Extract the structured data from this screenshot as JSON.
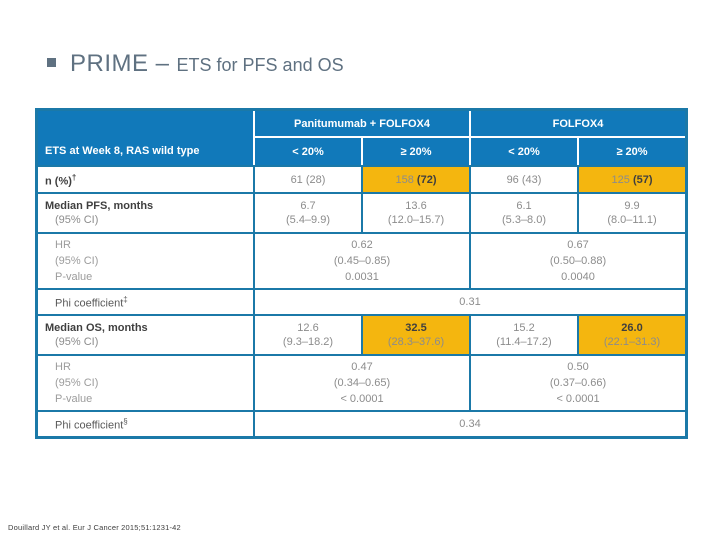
{
  "title": {
    "bullet_icon": "square-bullet",
    "primary": "PRIME –",
    "secondary": "ETS for PFS and OS"
  },
  "colors": {
    "table_blue": "#1179ba",
    "border_blue": "#1b79a8",
    "highlight_yellow": "#f4b60f",
    "title_gray": "#5f7181"
  },
  "table": {
    "corner_label": "ETS at Week 8, RAS wild type",
    "groups": [
      "Panitumumab + FOLFOX4",
      "FOLFOX4"
    ],
    "subheaders": [
      "< 20%",
      "≥ 20%",
      "< 20%",
      "≥ 20%"
    ],
    "n_row": {
      "label": "n (%)",
      "label_sup": "†",
      "cells": [
        {
          "value": "61",
          "pct": "(28)",
          "highlighted": false
        },
        {
          "value": "158",
          "pct": "(72)",
          "highlighted": true
        },
        {
          "value": "96",
          "pct": "(43)",
          "highlighted": false
        },
        {
          "value": "125",
          "pct": "(57)",
          "highlighted": true
        }
      ]
    },
    "pfs_row": {
      "label": "Median PFS, months",
      "sublabel": "(95% CI)",
      "cells": [
        {
          "value": "6.7",
          "ci": "(5.4–9.9)",
          "highlighted": false
        },
        {
          "value": "13.6",
          "ci": "(12.0–15.7)",
          "highlighted": false
        },
        {
          "value": "6.1",
          "ci": "(5.3–8.0)",
          "highlighted": false
        },
        {
          "value": "9.9",
          "ci": "(8.0–11.1)",
          "highlighted": false
        }
      ]
    },
    "pfs_hr_row": {
      "label_lines": [
        "HR",
        "(95% CI)",
        "P-value"
      ],
      "cells": [
        {
          "hr": "0.62",
          "ci": "(0.45–0.85)",
          "p": "0.0031"
        },
        {
          "hr": "0.67",
          "ci": "(0.50–0.88)",
          "p": "0.0040"
        }
      ]
    },
    "phi_pfs_row": {
      "label": "Phi coefficient",
      "label_sup": "‡",
      "value": "0.31"
    },
    "os_row": {
      "label": "Median OS, months",
      "sublabel": "(95% CI)",
      "cells": [
        {
          "value": "12.6",
          "ci": "(9.3–18.2)",
          "highlighted": false
        },
        {
          "value": "32.5",
          "ci": "(28.3–37.6)",
          "highlighted": true
        },
        {
          "value": "15.2",
          "ci": "(11.4–17.2)",
          "highlighted": false
        },
        {
          "value": "26.0",
          "ci": "(22.1–31.3)",
          "highlighted": true
        }
      ]
    },
    "os_hr_row": {
      "label_lines": [
        "HR",
        "(95% CI)",
        "P-value"
      ],
      "cells": [
        {
          "hr": "0.47",
          "ci": "(0.34–0.65)",
          "p": "< 0.0001"
        },
        {
          "hr": "0.50",
          "ci": "(0.37–0.66)",
          "p": "< 0.0001"
        }
      ]
    },
    "phi_os_row": {
      "label": "Phi coefficient",
      "label_sup": "§",
      "value": "0.34"
    }
  },
  "footer": {
    "citation": "Douillard JY et al. Eur J Cancer 2015;51:1231-42"
  }
}
